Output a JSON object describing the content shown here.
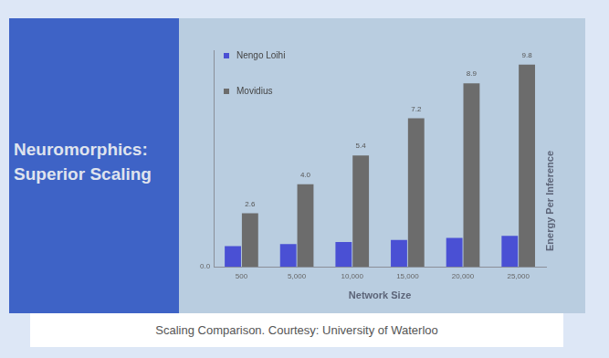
{
  "chart_data": {
    "type": "bar",
    "title": "Neuromorphics: Superior Scaling",
    "x_label": "Network Size",
    "y_label": "Energy Per Inference",
    "categories": [
      "500",
      "5,000",
      "10,000",
      "15,000",
      "20,000",
      "25,000"
    ],
    "series": [
      {
        "name": "Nengo Loihi",
        "color": "#4a50d4",
        "values": [
          1.0,
          1.1,
          1.2,
          1.3,
          1.4,
          1.5
        ]
      },
      {
        "name": "Movidius",
        "color": "#6c6c6c",
        "values": [
          2.6,
          4.0,
          5.4,
          7.2,
          8.9,
          9.8
        ],
        "value_labels": [
          "2.6",
          "4.0",
          "5.4",
          "7.2",
          "8.9",
          "9.8"
        ],
        "data_labels": true
      }
    ],
    "ylim": [
      0,
      10.5
    ],
    "yticks": [
      {
        "value": 0,
        "label": "0.0"
      }
    ],
    "grid": false,
    "legend": "upper left"
  },
  "caption": "Scaling Comparison. Courtesy: University of Waterloo"
}
